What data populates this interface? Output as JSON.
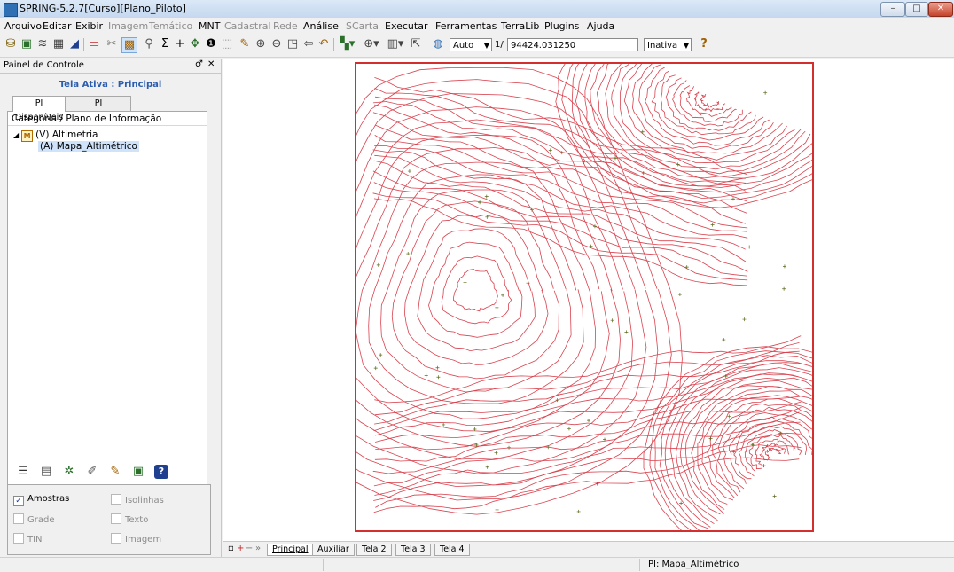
{
  "window": {
    "title": "SPRING-5.2.7[Curso][Plano_Piloto]",
    "minimize": "–",
    "maximize": "□",
    "close": "✕"
  },
  "menu": [
    {
      "label": "Arquivo",
      "enabled": true
    },
    {
      "label": "Editar",
      "enabled": true
    },
    {
      "label": "Exibir",
      "enabled": true
    },
    {
      "label": "Imagem",
      "enabled": false
    },
    {
      "label": "Temático",
      "enabled": false
    },
    {
      "label": "MNT",
      "enabled": true
    },
    {
      "label": "Cadastral",
      "enabled": false
    },
    {
      "label": "Rede",
      "enabled": false
    },
    {
      "label": "Análise",
      "enabled": true
    },
    {
      "label": "SCarta",
      "enabled": false
    },
    {
      "label": "Executar",
      "enabled": true
    },
    {
      "label": "Ferramentas",
      "enabled": true
    },
    {
      "label": "TerraLib",
      "enabled": true
    },
    {
      "label": "Plugins",
      "enabled": true
    },
    {
      "label": "Ajuda",
      "enabled": true
    }
  ],
  "toolbar": {
    "mode_value": "Auto",
    "scale_prefix": "1/",
    "scale_value": "94424.031250",
    "state_value": "Inativa",
    "icons": [
      "database-icon",
      "project-icon",
      "layers-icon",
      "grid-icon",
      "eraser-icon",
      "frame-icon",
      "cut-icon",
      "model-icon",
      "query-icon",
      "sigma-icon",
      "add-icon",
      "pan-icon",
      "info-icon",
      "select-icon",
      "pencil-icon",
      "zoom-in-icon",
      "zoom-out-icon",
      "zoom-area-icon",
      "back-icon",
      "undo-icon",
      "color-icon",
      "zoom-plus-icon",
      "display-icon",
      "cursor-icon",
      "palette-icon",
      "help-icon"
    ]
  },
  "panel": {
    "title": "Painel de Controle",
    "pin": "♂",
    "close": "✕",
    "active_screen": "Tela Ativa : Principal",
    "tabs": [
      "PI Disponíveis",
      "PI Selecionados"
    ],
    "tree_header": "Categoria / Plano de Informação",
    "tree": {
      "category": "(V) Altimetria",
      "category_icon": "M",
      "plane": "(A) Mapa_Altimétrico"
    },
    "checkboxes": [
      {
        "label": "Amostras",
        "checked": true,
        "enabled": true
      },
      {
        "label": "Isolinhas",
        "checked": false,
        "enabled": false
      },
      {
        "label": "Grade",
        "checked": false,
        "enabled": false
      },
      {
        "label": "Texto",
        "checked": false,
        "enabled": false
      },
      {
        "label": "TIN",
        "checked": false,
        "enabled": false
      },
      {
        "label": "Imagem",
        "checked": false,
        "enabled": false
      }
    ]
  },
  "screens": [
    "Principal",
    "Auxiliar",
    "Tela 2",
    "Tela 3",
    "Tela 4"
  ],
  "status": {
    "pi": "PI: Mapa_Altimétrico"
  },
  "colors": {
    "contour": "#d9434f",
    "frame": "#d32f2f",
    "sample_point": "#5b6b1e"
  }
}
